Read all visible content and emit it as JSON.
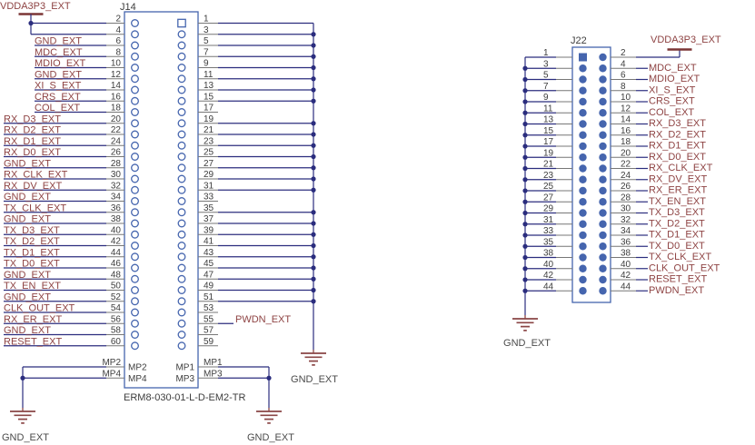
{
  "colors": {
    "wire": "#2B2D7E",
    "component": "#4565AE",
    "stub": "#777777",
    "net_label": "#8E4343",
    "ground": "#8A4545",
    "power": "#7B3535",
    "text": "#3D3D3D",
    "gnd_text": "#4A4A4A",
    "background": "#FFFFFF"
  },
  "j14": {
    "designator": "J14",
    "part_number": "ERM8-030-01-L-D-EM2-TR",
    "power_net": "VDDA3P3_EXT",
    "gnd_left": "GND_EXT",
    "gnd_right": "GND_EXT",
    "gnd_bus": "GND_EXT",
    "left_pins": [
      {
        "num": "2",
        "net": ""
      },
      {
        "num": "4",
        "net": ""
      },
      {
        "num": "6",
        "net": "GND_EXT"
      },
      {
        "num": "8",
        "net": "MDC_EXT"
      },
      {
        "num": "10",
        "net": "MDIO_EXT"
      },
      {
        "num": "12",
        "net": "GND_EXT"
      },
      {
        "num": "14",
        "net": "XI_S_EXT"
      },
      {
        "num": "16",
        "net": "CRS_EXT"
      },
      {
        "num": "18",
        "net": "COL_EXT"
      },
      {
        "num": "20",
        "net": "RX_D3_EXT"
      },
      {
        "num": "22",
        "net": "RX_D2_EXT"
      },
      {
        "num": "24",
        "net": "RX_D1_EXT"
      },
      {
        "num": "26",
        "net": "RX_D0_EXT"
      },
      {
        "num": "28",
        "net": "GND_EXT"
      },
      {
        "num": "30",
        "net": "RX_CLK_EXT"
      },
      {
        "num": "32",
        "net": "RX_DV_EXT"
      },
      {
        "num": "34",
        "net": "GND_EXT"
      },
      {
        "num": "36",
        "net": "TX_CLK_EXT"
      },
      {
        "num": "38",
        "net": "GND_EXT"
      },
      {
        "num": "40",
        "net": "TX_D3_EXT"
      },
      {
        "num": "42",
        "net": "TX_D2_EXT"
      },
      {
        "num": "44",
        "net": "TX_D1_EXT"
      },
      {
        "num": "46",
        "net": "TX_D0_EXT"
      },
      {
        "num": "48",
        "net": "GND_EXT"
      },
      {
        "num": "50",
        "net": "TX_EN_EXT"
      },
      {
        "num": "52",
        "net": "GND_EXT"
      },
      {
        "num": "54",
        "net": "CLK_OUT_EXT"
      },
      {
        "num": "56",
        "net": "RX_ER_EXT"
      },
      {
        "num": "58",
        "net": "GND_EXT"
      },
      {
        "num": "60",
        "net": "RESET_EXT"
      }
    ],
    "right_pins": [
      {
        "num": "1",
        "connected": true
      },
      {
        "num": "3",
        "connected": true
      },
      {
        "num": "5",
        "connected": true
      },
      {
        "num": "7",
        "connected": true
      },
      {
        "num": "9",
        "connected": true
      },
      {
        "num": "11",
        "connected": true
      },
      {
        "num": "13",
        "connected": true
      },
      {
        "num": "15",
        "connected": true
      },
      {
        "num": "17",
        "connected": false
      },
      {
        "num": "19",
        "connected": true
      },
      {
        "num": "21",
        "connected": true
      },
      {
        "num": "23",
        "connected": true
      },
      {
        "num": "25",
        "connected": true
      },
      {
        "num": "27",
        "connected": true
      },
      {
        "num": "29",
        "connected": true
      },
      {
        "num": "31",
        "connected": true
      },
      {
        "num": "33",
        "connected": false
      },
      {
        "num": "35",
        "connected": true
      },
      {
        "num": "37",
        "connected": true
      },
      {
        "num": "39",
        "connected": true
      },
      {
        "num": "41",
        "connected": true
      },
      {
        "num": "43",
        "connected": true
      },
      {
        "num": "45",
        "connected": true
      },
      {
        "num": "47",
        "connected": true
      },
      {
        "num": "49",
        "connected": true
      },
      {
        "num": "51",
        "connected": true
      },
      {
        "num": "53",
        "connected": false
      },
      {
        "num": "55",
        "connected": false,
        "net": "PWDN_EXT"
      },
      {
        "num": "57",
        "connected": false
      },
      {
        "num": "59",
        "connected": false
      }
    ],
    "mp": {
      "left_outside": [
        "MP2",
        "MP4"
      ],
      "left_inside": [
        "MP2",
        "MP4"
      ],
      "right_inside": [
        "MP1",
        "MP3"
      ],
      "right_outside": [
        "MP1",
        "MP3"
      ]
    }
  },
  "j22": {
    "designator": "J22",
    "power_net": "VDDA3P3_EXT",
    "gnd": "GND_EXT",
    "rows": [
      {
        "left": "1",
        "right": "2",
        "net": "",
        "power": true
      },
      {
        "left": "3",
        "right": "4",
        "net": "MDC_EXT"
      },
      {
        "left": "5",
        "right": "6",
        "net": "MDIO_EXT"
      },
      {
        "left": "7",
        "right": "8",
        "net": "XI_S_EXT"
      },
      {
        "left": "9",
        "right": "10",
        "net": "CRS_EXT"
      },
      {
        "left": "11",
        "right": "12",
        "net": "COL_EXT"
      },
      {
        "left": "13",
        "right": "14",
        "net": "RX_D3_EXT"
      },
      {
        "left": "15",
        "right": "16",
        "net": "RX_D2_EXT"
      },
      {
        "left": "17",
        "right": "18",
        "net": "RX_D1_EXT"
      },
      {
        "left": "19",
        "right": "20",
        "net": "RX_D0_EXT"
      },
      {
        "left": "21",
        "right": "22",
        "net": "RX_CLK_EXT"
      },
      {
        "left": "23",
        "right": "24",
        "net": "RX_DV_EXT"
      },
      {
        "left": "25",
        "right": "26",
        "net": "RX_ER_EXT"
      },
      {
        "left": "27",
        "right": "28",
        "net": "TX_EN_EXT"
      },
      {
        "left": "29",
        "right": "30",
        "net": "TX_D3_EXT"
      },
      {
        "left": "31",
        "right": "32",
        "net": "TX_D2_EXT"
      },
      {
        "left": "33",
        "right": "34",
        "net": "TX_D1_EXT"
      },
      {
        "left": "35",
        "right": "36",
        "net": "TX_D0_EXT"
      },
      {
        "left": "38",
        "right": "38",
        "net": "TX_CLK_EXT"
      },
      {
        "left": "40",
        "right": "40",
        "net": "CLK_OUT_EXT"
      },
      {
        "left": "42",
        "right": "42",
        "net": "RESET_EXT"
      },
      {
        "left": "44",
        "right": "44",
        "net": "PWDN_EXT"
      }
    ]
  }
}
